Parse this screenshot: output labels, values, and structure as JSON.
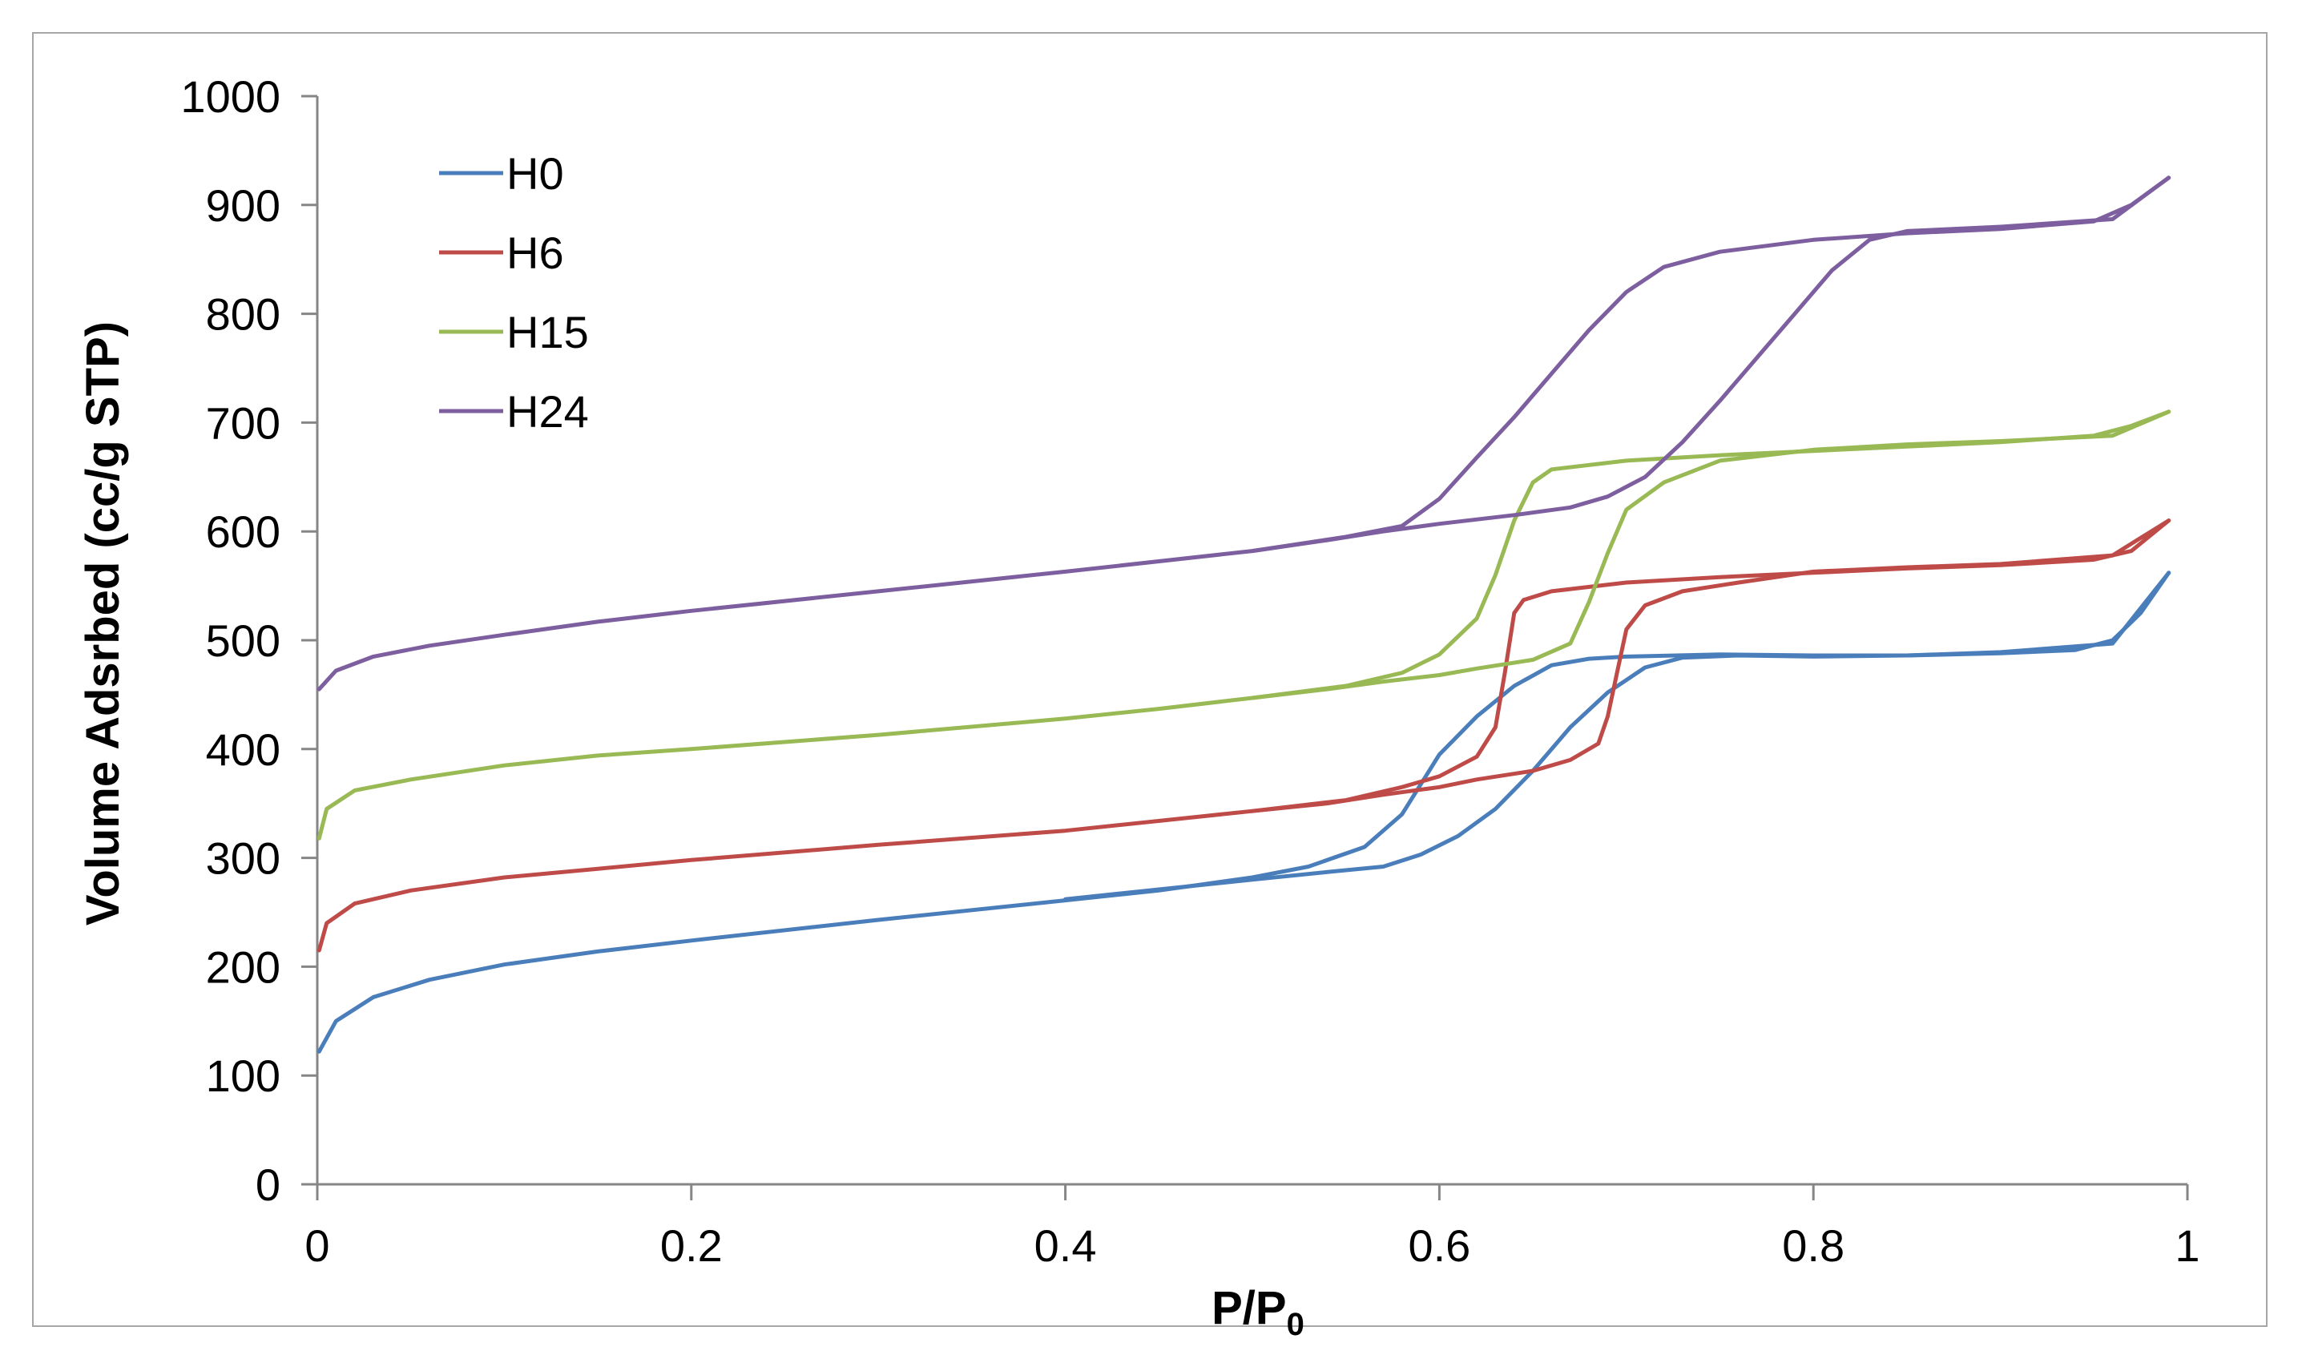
{
  "chart_data": {
    "type": "line",
    "title": "",
    "xlabel": "P/P",
    "xlabel_subscript": "0",
    "ylabel": "Volume Adsrbed (cc/g STP)",
    "xlim": [
      0,
      1
    ],
    "ylim": [
      0,
      1000
    ],
    "xticks": [
      0,
      0.2,
      0.4,
      0.6,
      0.8,
      1
    ],
    "xtick_labels": [
      "0",
      "0.2",
      "0.4",
      "0.6",
      "0.8",
      "1"
    ],
    "yticks": [
      0,
      100,
      200,
      300,
      400,
      500,
      600,
      700,
      800,
      900,
      1000
    ],
    "ytick_labels": [
      "0",
      "100",
      "200",
      "300",
      "400",
      "500",
      "600",
      "700",
      "800",
      "900",
      "1000"
    ],
    "grid": false,
    "legend_position": "top-left",
    "series": [
      {
        "name": "H0",
        "color": "#4a7ebb",
        "adsorption": [
          [
            0.001,
            122
          ],
          [
            0.01,
            150
          ],
          [
            0.03,
            172
          ],
          [
            0.06,
            188
          ],
          [
            0.1,
            202
          ],
          [
            0.15,
            214
          ],
          [
            0.2,
            224
          ],
          [
            0.3,
            243
          ],
          [
            0.4,
            261
          ],
          [
            0.45,
            270
          ],
          [
            0.5,
            282
          ],
          [
            0.53,
            292
          ],
          [
            0.56,
            310
          ],
          [
            0.58,
            340
          ],
          [
            0.6,
            395
          ],
          [
            0.62,
            430
          ],
          [
            0.64,
            458
          ],
          [
            0.66,
            477
          ],
          [
            0.68,
            483
          ],
          [
            0.7,
            485
          ],
          [
            0.75,
            487
          ],
          [
            0.8,
            486
          ],
          [
            0.85,
            486
          ],
          [
            0.9,
            488
          ],
          [
            0.94,
            491
          ],
          [
            0.96,
            500
          ],
          [
            0.975,
            525
          ],
          [
            0.99,
            562
          ]
        ],
        "desorption": [
          [
            0.99,
            562
          ],
          [
            0.96,
            497
          ],
          [
            0.9,
            489
          ],
          [
            0.85,
            486
          ],
          [
            0.8,
            485
          ],
          [
            0.76,
            486
          ],
          [
            0.73,
            484
          ],
          [
            0.71,
            475
          ],
          [
            0.69,
            452
          ],
          [
            0.67,
            420
          ],
          [
            0.65,
            380
          ],
          [
            0.63,
            345
          ],
          [
            0.61,
            320
          ],
          [
            0.59,
            303
          ],
          [
            0.57,
            292
          ],
          [
            0.54,
            287
          ],
          [
            0.5,
            280
          ],
          [
            0.45,
            271
          ],
          [
            0.4,
            262
          ]
        ]
      },
      {
        "name": "H6",
        "color": "#be4b48",
        "adsorption": [
          [
            0.001,
            215
          ],
          [
            0.005,
            240
          ],
          [
            0.02,
            258
          ],
          [
            0.05,
            270
          ],
          [
            0.1,
            282
          ],
          [
            0.15,
            290
          ],
          [
            0.2,
            298
          ],
          [
            0.3,
            312
          ],
          [
            0.4,
            325
          ],
          [
            0.5,
            343
          ],
          [
            0.55,
            353
          ],
          [
            0.58,
            365
          ],
          [
            0.6,
            375
          ],
          [
            0.62,
            393
          ],
          [
            0.63,
            420
          ],
          [
            0.635,
            470
          ],
          [
            0.64,
            525
          ],
          [
            0.645,
            537
          ],
          [
            0.66,
            545
          ],
          [
            0.7,
            553
          ],
          [
            0.75,
            558
          ],
          [
            0.8,
            562
          ],
          [
            0.85,
            566
          ],
          [
            0.9,
            569
          ],
          [
            0.95,
            574
          ],
          [
            0.97,
            582
          ],
          [
            0.99,
            610
          ]
        ],
        "desorption": [
          [
            0.99,
            610
          ],
          [
            0.96,
            578
          ],
          [
            0.9,
            570
          ],
          [
            0.85,
            567
          ],
          [
            0.8,
            563
          ],
          [
            0.76,
            553
          ],
          [
            0.73,
            545
          ],
          [
            0.71,
            532
          ],
          [
            0.7,
            510
          ],
          [
            0.695,
            470
          ],
          [
            0.69,
            430
          ],
          [
            0.685,
            405
          ],
          [
            0.67,
            390
          ],
          [
            0.65,
            380
          ],
          [
            0.62,
            372
          ],
          [
            0.6,
            365
          ],
          [
            0.57,
            358
          ],
          [
            0.54,
            350
          ],
          [
            0.5,
            343
          ]
        ]
      },
      {
        "name": "H15",
        "color": "#98b954",
        "adsorption": [
          [
            0.001,
            318
          ],
          [
            0.005,
            345
          ],
          [
            0.02,
            362
          ],
          [
            0.05,
            372
          ],
          [
            0.1,
            385
          ],
          [
            0.15,
            394
          ],
          [
            0.2,
            400
          ],
          [
            0.3,
            413
          ],
          [
            0.4,
            428
          ],
          [
            0.45,
            437
          ],
          [
            0.5,
            447
          ],
          [
            0.55,
            458
          ],
          [
            0.58,
            470
          ],
          [
            0.6,
            487
          ],
          [
            0.62,
            520
          ],
          [
            0.63,
            560
          ],
          [
            0.64,
            610
          ],
          [
            0.65,
            645
          ],
          [
            0.66,
            657
          ],
          [
            0.7,
            665
          ],
          [
            0.75,
            670
          ],
          [
            0.8,
            674
          ],
          [
            0.85,
            678
          ],
          [
            0.9,
            682
          ],
          [
            0.95,
            688
          ],
          [
            0.97,
            697
          ],
          [
            0.99,
            710
          ]
        ],
        "desorption": [
          [
            0.99,
            710
          ],
          [
            0.96,
            688
          ],
          [
            0.9,
            683
          ],
          [
            0.85,
            680
          ],
          [
            0.8,
            675
          ],
          [
            0.75,
            665
          ],
          [
            0.72,
            645
          ],
          [
            0.7,
            620
          ],
          [
            0.69,
            580
          ],
          [
            0.68,
            535
          ],
          [
            0.67,
            497
          ],
          [
            0.65,
            482
          ],
          [
            0.62,
            474
          ],
          [
            0.6,
            468
          ],
          [
            0.57,
            462
          ],
          [
            0.54,
            455
          ],
          [
            0.5,
            447
          ]
        ]
      },
      {
        "name": "H24",
        "color": "#7d5fa0",
        "adsorption": [
          [
            0.001,
            455
          ],
          [
            0.01,
            472
          ],
          [
            0.03,
            485
          ],
          [
            0.06,
            495
          ],
          [
            0.1,
            505
          ],
          [
            0.15,
            517
          ],
          [
            0.2,
            527
          ],
          [
            0.3,
            545
          ],
          [
            0.4,
            563
          ],
          [
            0.5,
            582
          ],
          [
            0.55,
            595
          ],
          [
            0.58,
            605
          ],
          [
            0.6,
            630
          ],
          [
            0.62,
            668
          ],
          [
            0.64,
            705
          ],
          [
            0.66,
            745
          ],
          [
            0.68,
            785
          ],
          [
            0.7,
            820
          ],
          [
            0.72,
            843
          ],
          [
            0.75,
            857
          ],
          [
            0.8,
            868
          ],
          [
            0.85,
            874
          ],
          [
            0.9,
            878
          ],
          [
            0.95,
            885
          ],
          [
            0.97,
            900
          ],
          [
            0.99,
            925
          ]
        ],
        "desorption": [
          [
            0.99,
            925
          ],
          [
            0.96,
            887
          ],
          [
            0.9,
            880
          ],
          [
            0.85,
            876
          ],
          [
            0.83,
            868
          ],
          [
            0.81,
            840
          ],
          [
            0.79,
            800
          ],
          [
            0.77,
            760
          ],
          [
            0.75,
            720
          ],
          [
            0.73,
            682
          ],
          [
            0.71,
            650
          ],
          [
            0.69,
            632
          ],
          [
            0.67,
            622
          ],
          [
            0.64,
            615
          ],
          [
            0.6,
            607
          ],
          [
            0.57,
            600
          ],
          [
            0.54,
            592
          ],
          [
            0.5,
            582
          ]
        ]
      }
    ]
  }
}
